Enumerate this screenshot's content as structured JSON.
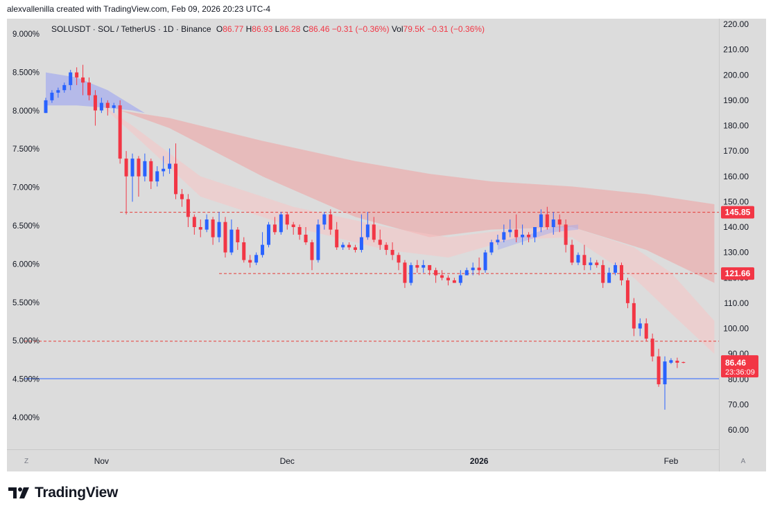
{
  "header": {
    "text": "alexvallenilla created with TradingView.com, Feb 09, 2026 20:23 UTC-4"
  },
  "legend": {
    "symbol": "SOLUSDT · SOL / TetherUS · 1D · Binance",
    "o_label": "O",
    "o": "86.77",
    "h_label": "H",
    "h": "86.93",
    "l_label": "L",
    "l": "86.28",
    "c_label": "C",
    "c": "86.46",
    "change": "−0.31 (−0.36%)",
    "vol_label": "Vol",
    "vol": "79.5K",
    "vol_change": "−0.31 (−0.36%)"
  },
  "footer": {
    "brand": "TradingView"
  },
  "corner": {
    "left": "Z",
    "right": "A"
  },
  "colors": {
    "bg": "#dcdcdc",
    "up": "#2962ff",
    "down": "#f23645",
    "band_outer": "#f0a0a0",
    "band_inner": "#f7c5c5",
    "band_blue": "#9fa8f0",
    "hline": "#e53935",
    "support": "#2962ff",
    "axis_text": "#131722"
  },
  "chart_data": {
    "type": "candlestick",
    "title": "SOLUSDT · SOL / TetherUS · 1D · Binance",
    "right_axis": {
      "min": 60,
      "max": 220,
      "ticks": [
        "220.00",
        "210.00",
        "200.00",
        "190.00",
        "180.00",
        "170.00",
        "160.00",
        "150.00",
        "140.00",
        "130.00",
        "120.00",
        "110.00",
        "100.00",
        "90.00",
        "80.00",
        "70.00",
        "60.00"
      ]
    },
    "left_axis": {
      "ticks": [
        "9.000%",
        "8.500%",
        "8.000%",
        "7.500%",
        "7.000%",
        "6.500%",
        "6.000%",
        "5.500%",
        "5.000%",
        "4.500%",
        "4.000%"
      ],
      "values": [
        9.0,
        8.5,
        8.0,
        7.5,
        7.0,
        6.5,
        6.0,
        5.5,
        5.0,
        4.5,
        4.0
      ]
    },
    "x_labels": [
      {
        "label": "Nov",
        "index": 9,
        "bold": false
      },
      {
        "label": "Dec",
        "index": 39,
        "bold": false
      },
      {
        "label": "2026",
        "index": 70,
        "bold": true
      },
      {
        "label": "Feb",
        "index": 101,
        "bold": false
      }
    ],
    "price_tags": [
      {
        "value": 145.85,
        "label": "145.85"
      },
      {
        "value": 121.66,
        "label": "121.66"
      }
    ],
    "last_price": {
      "value": 86.46,
      "label": "86.46",
      "countdown": "23:36:09"
    },
    "horizontal_lines": [
      {
        "value": 145.85,
        "start_index": 12,
        "style": "dashed"
      },
      {
        "value": 121.66,
        "start_index": 28,
        "style": "dashed"
      },
      {
        "value": 95.0,
        "start_index": -7,
        "style": "dashed"
      },
      {
        "value": 80.2,
        "start_index": -7,
        "style": "solid",
        "color": "support"
      }
    ],
    "candles": [
      [
        185,
        190,
        185,
        191
      ],
      [
        190,
        193,
        189,
        194
      ],
      [
        193,
        194,
        191,
        195
      ],
      [
        194,
        196,
        193,
        197
      ],
      [
        196,
        201,
        194,
        202
      ],
      [
        201,
        199,
        196,
        203
      ],
      [
        199,
        197,
        192,
        204
      ],
      [
        197,
        192,
        190,
        199
      ],
      [
        192,
        186,
        180,
        194
      ],
      [
        186,
        189,
        185,
        191
      ],
      [
        189,
        187,
        184,
        190
      ],
      [
        187,
        188,
        185,
        189
      ],
      [
        188,
        167,
        165,
        190
      ],
      [
        167,
        160,
        145,
        170
      ],
      [
        160,
        167,
        150,
        169
      ],
      [
        167,
        160,
        152,
        168
      ],
      [
        160,
        166,
        158,
        169
      ],
      [
        166,
        158,
        155,
        167
      ],
      [
        158,
        162,
        156,
        164
      ],
      [
        162,
        163,
        160,
        168
      ],
      [
        163,
        165,
        161,
        171
      ],
      [
        165,
        153,
        151,
        173
      ],
      [
        153,
        151,
        148,
        155
      ],
      [
        151,
        144,
        140,
        153
      ],
      [
        144,
        140,
        137,
        145
      ],
      [
        140,
        139,
        136,
        143
      ],
      [
        139,
        143,
        138,
        145
      ],
      [
        143,
        136,
        133,
        144
      ],
      [
        136,
        142,
        134,
        146
      ],
      [
        142,
        130,
        128,
        144
      ],
      [
        130,
        139,
        129,
        143
      ],
      [
        139,
        134,
        131,
        140
      ],
      [
        134,
        127,
        126,
        136
      ],
      [
        127,
        126,
        124,
        129
      ],
      [
        126,
        129,
        125,
        130
      ],
      [
        129,
        133,
        128,
        138
      ],
      [
        133,
        141,
        132,
        142
      ],
      [
        141,
        138,
        137,
        144
      ],
      [
        138,
        145,
        137,
        146
      ],
      [
        145,
        141,
        139,
        146
      ],
      [
        141,
        140,
        137,
        142
      ],
      [
        140,
        137,
        135,
        141
      ],
      [
        137,
        134,
        133,
        140
      ],
      [
        134,
        127,
        123,
        135
      ],
      [
        127,
        141,
        126,
        143
      ],
      [
        141,
        145,
        139,
        146
      ],
      [
        145,
        139,
        137,
        147
      ],
      [
        139,
        132,
        131,
        142
      ],
      [
        132,
        133,
        131,
        134
      ],
      [
        133,
        132,
        131,
        134
      ],
      [
        132,
        131,
        130,
        133
      ],
      [
        131,
        136,
        130,
        145
      ],
      [
        136,
        141,
        135,
        146
      ],
      [
        141,
        135,
        134,
        144
      ],
      [
        135,
        133,
        131,
        139
      ],
      [
        133,
        131,
        129,
        134
      ],
      [
        131,
        129,
        127,
        134
      ],
      [
        129,
        126,
        123,
        130
      ],
      [
        126,
        118,
        116,
        127
      ],
      [
        118,
        125,
        117,
        126
      ],
      [
        125,
        124,
        122,
        127
      ],
      [
        124,
        125,
        122,
        127
      ],
      [
        125,
        123,
        121,
        125
      ],
      [
        123,
        121,
        118,
        124
      ],
      [
        121,
        120,
        119,
        123
      ],
      [
        120,
        119,
        117,
        121
      ],
      [
        119,
        118,
        118,
        120
      ],
      [
        118,
        121,
        117,
        123
      ],
      [
        121,
        123,
        121,
        124
      ],
      [
        123,
        124,
        121,
        126
      ],
      [
        124,
        123,
        121,
        128
      ],
      [
        123,
        130,
        122,
        131
      ],
      [
        130,
        134,
        129,
        135
      ],
      [
        134,
        135,
        133,
        137
      ],
      [
        135,
        138,
        134,
        141
      ],
      [
        138,
        139,
        136,
        143
      ],
      [
        139,
        136,
        134,
        145
      ],
      [
        136,
        137,
        133,
        141
      ],
      [
        137,
        136,
        134,
        138
      ],
      [
        136,
        140,
        134,
        140
      ],
      [
        140,
        145,
        138,
        147
      ],
      [
        145,
        140,
        139,
        148
      ],
      [
        140,
        143,
        137,
        146
      ],
      [
        143,
        141,
        138,
        145
      ],
      [
        141,
        133,
        130,
        143
      ],
      [
        133,
        126,
        125,
        135
      ],
      [
        126,
        129,
        125,
        130
      ],
      [
        129,
        125,
        123,
        133
      ],
      [
        125,
        126,
        123,
        128
      ],
      [
        126,
        125,
        124,
        127
      ],
      [
        125,
        118,
        116,
        127
      ],
      [
        118,
        122,
        118,
        124
      ],
      [
        122,
        125,
        121,
        126
      ],
      [
        125,
        119,
        117,
        126
      ],
      [
        119,
        110,
        108,
        120
      ],
      [
        110,
        100,
        97,
        112
      ],
      [
        100,
        102,
        97,
        104
      ],
      [
        102,
        96,
        95,
        104
      ],
      [
        96,
        89,
        87,
        98
      ],
      [
        89,
        78,
        77,
        92
      ],
      [
        78,
        87,
        68,
        89
      ],
      [
        86.5,
        87.5,
        86,
        88.3
      ],
      [
        87.3,
        86.5,
        84.4,
        88.5
      ],
      [
        86.77,
        86.46,
        86.28,
        86.93
      ]
    ],
    "bands": {
      "outer_upper": [
        [
          12,
          186
        ],
        [
          20,
          183
        ],
        [
          35,
          174
        ],
        [
          50,
          166
        ],
        [
          62,
          161
        ],
        [
          72,
          158
        ],
        [
          85,
          156
        ],
        [
          97,
          153
        ],
        [
          108,
          149
        ]
      ],
      "outer_lower": [
        [
          12,
          186
        ],
        [
          20,
          179
        ],
        [
          35,
          160
        ],
        [
          50,
          144
        ],
        [
          62,
          136
        ],
        [
          72,
          139
        ],
        [
          85,
          140
        ],
        [
          97,
          131
        ],
        [
          108,
          118
        ]
      ],
      "inner_upper": [
        [
          8,
          190
        ],
        [
          14,
          180
        ],
        [
          25,
          160
        ],
        [
          40,
          148
        ],
        [
          55,
          140
        ],
        [
          65,
          136
        ],
        [
          75,
          139
        ],
        [
          85,
          140
        ],
        [
          95,
          132
        ],
        [
          101,
          122
        ],
        [
          108,
          103
        ]
      ],
      "inner_lower": [
        [
          8,
          190
        ],
        [
          14,
          177
        ],
        [
          25,
          152
        ],
        [
          40,
          140
        ],
        [
          55,
          131
        ],
        [
          65,
          128
        ],
        [
          75,
          135
        ],
        [
          85,
          136
        ],
        [
          95,
          120
        ],
        [
          101,
          106
        ],
        [
          108,
          90
        ]
      ],
      "blue_upper": [
        [
          0,
          201
        ],
        [
          5,
          199
        ],
        [
          10,
          194
        ],
        [
          14,
          188
        ],
        [
          16,
          185
        ]
      ],
      "blue_lower": [
        [
          0,
          188
        ],
        [
          5,
          188
        ],
        [
          10,
          187
        ],
        [
          14,
          186
        ],
        [
          16,
          185
        ]
      ],
      "blue2_upper": [
        [
          73,
          134
        ],
        [
          78,
          137
        ],
        [
          82,
          140
        ],
        [
          86,
          141
        ]
      ],
      "blue2_lower": [
        [
          73,
          131
        ],
        [
          78,
          135
        ],
        [
          82,
          138
        ],
        [
          86,
          139
        ]
      ]
    }
  }
}
